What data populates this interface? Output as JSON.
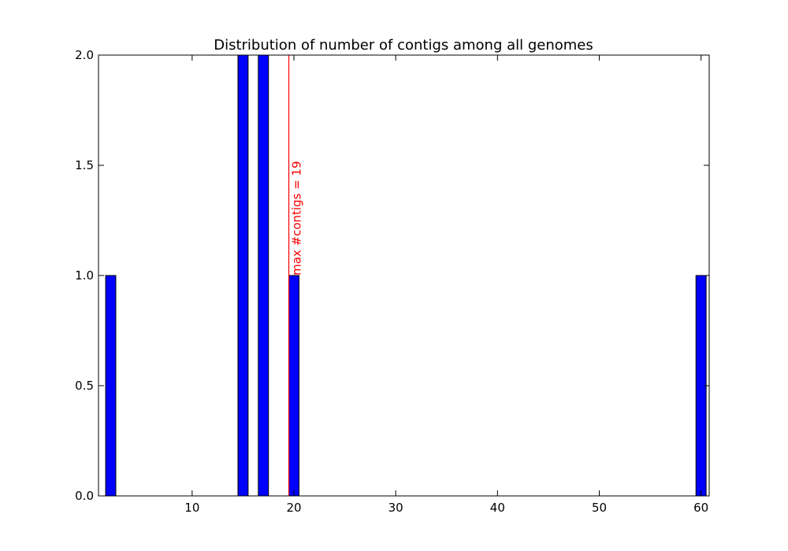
{
  "chart_data": {
    "type": "bar",
    "title": "Distribution of number of contigs among all genomes",
    "xlabel": "",
    "ylabel": "",
    "xlim": [
      0.8,
      60.8
    ],
    "ylim": [
      0,
      2.0
    ],
    "bar_width": 1.0,
    "x": [
      2,
      15,
      17,
      20,
      60
    ],
    "values": [
      1,
      2,
      2,
      1,
      1
    ],
    "xticks": [
      10,
      20,
      30,
      40,
      50,
      60
    ],
    "xtick_labels": [
      "10",
      "20",
      "30",
      "40",
      "50",
      "60"
    ],
    "yticks": [
      0.0,
      0.5,
      1.0,
      1.5,
      2.0
    ],
    "ytick_labels": [
      "0.0",
      "0.5",
      "1.0",
      "1.5",
      "2.0"
    ],
    "grid": false,
    "bar_color": "#0000ff",
    "vline": {
      "x": 19.5,
      "color": "#ff0000",
      "label": "max #contigs = 19",
      "label_y": 1.0
    }
  }
}
